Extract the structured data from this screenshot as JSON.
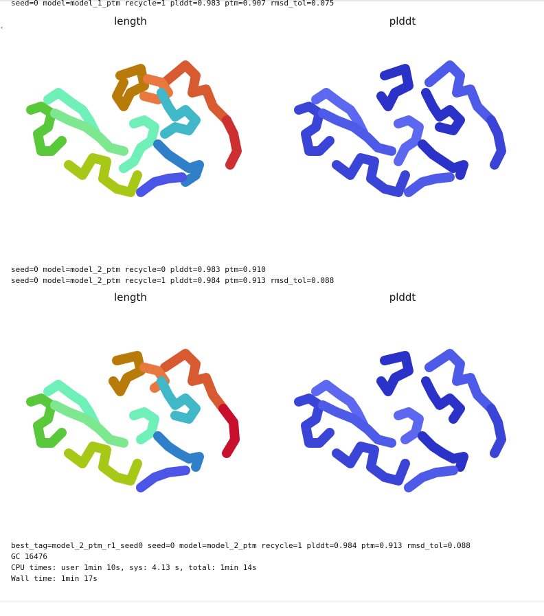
{
  "output": {
    "run1_line": "seed=0 model=model_1_ptm recycle=1 plddt=0.983 ptm=0.907 rmsd_tol=0.075",
    "run2_line_a": "seed=0 model=model_2_ptm recycle=0 plddt=0.983 ptm=0.910",
    "run2_line_b": "seed=0 model=model_2_ptm recycle=1 plddt=0.984 ptm=0.913 rmsd_tol=0.088",
    "best_line": "best_tag=model_2_ptm_r1_seed0 seed=0 model=model_2_ptm recycle=1 plddt=0.984 ptm=0.913 rmsd_tol=0.088",
    "gc_line": "GC 16476",
    "cpu_line": "CPU times: user 1min 10s, sys: 4.13 s, total: 1min 14s",
    "wall_line": "Wall time: 1min 17s"
  },
  "figure1": {
    "left_title": "length",
    "right_title": "plddt"
  },
  "figure2": {
    "left_title": "length",
    "right_title": "plddt"
  },
  "colors": {
    "length_gradient": [
      "#4b55e6",
      "#2f7fc9",
      "#40b8c8",
      "#6ef0b8",
      "#7ee890",
      "#59c83a",
      "#a8c818",
      "#c89a10",
      "#b87a08",
      "#e87840",
      "#d85a30",
      "#cc3030",
      "#c8102e"
    ],
    "plddt_colors": [
      "#2a32c8",
      "#3a45d8",
      "#4e5ae8",
      "#5c68f0"
    ]
  }
}
